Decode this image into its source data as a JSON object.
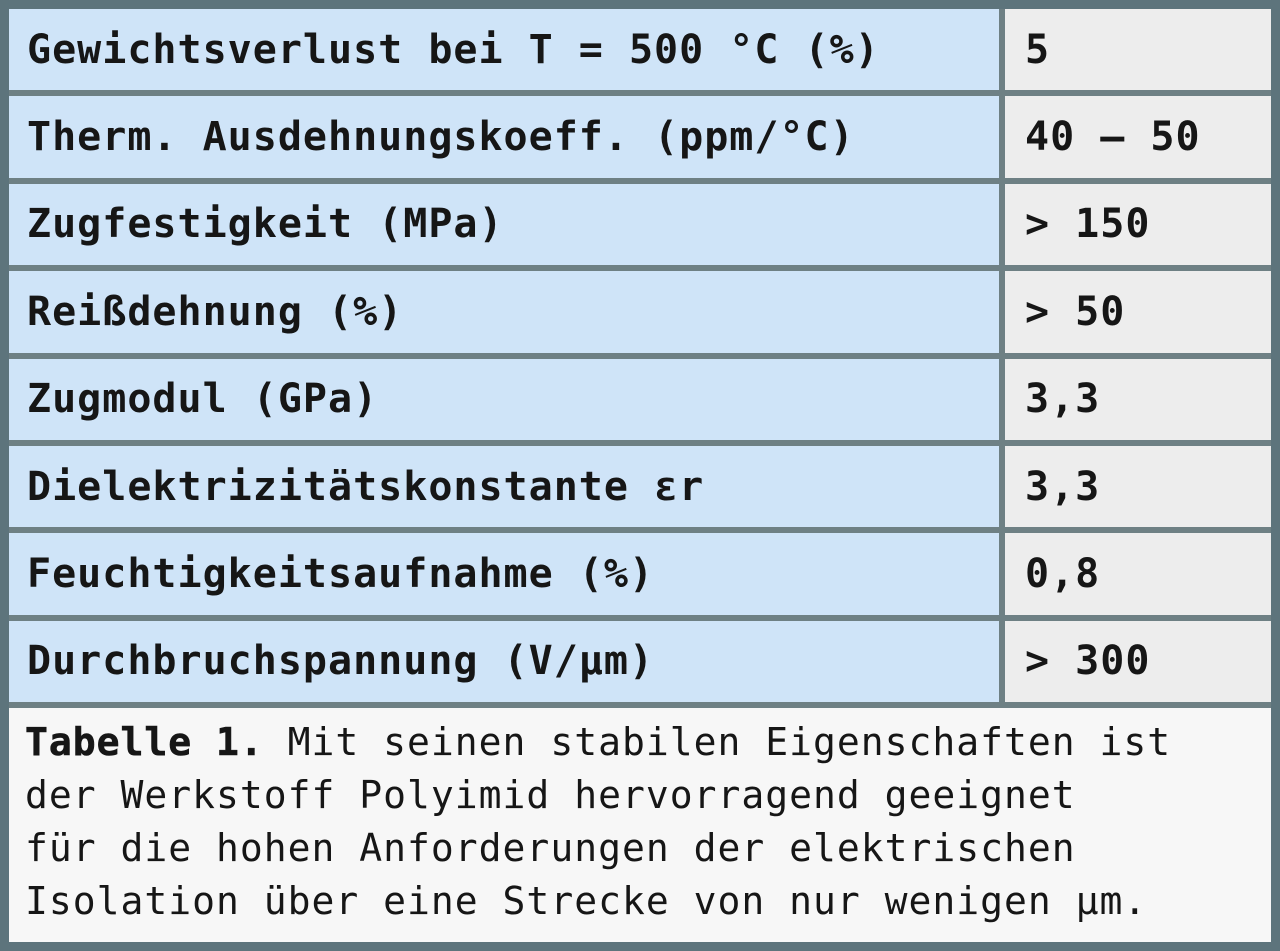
{
  "colors": {
    "property_cell_bg": "#cfe4f8",
    "value_cell_bg": "#ededed",
    "caption_bg": "#f7f7f7",
    "border": "#6e8084",
    "outer_border": "#5d747c",
    "text": "#161616"
  },
  "table": {
    "rows": [
      {
        "property": "Gewichtsverlust bei T = 500 °C (%)",
        "value": "5"
      },
      {
        "property": "Therm. Ausdehnungskoeff. (ppm/°C)",
        "value": "40 – 50"
      },
      {
        "property": "Zugfestigkeit (MPa)",
        "value": "> 150"
      },
      {
        "property": "Reißdehnung (%)",
        "value": "> 50"
      },
      {
        "property": "Zugmodul (GPa)",
        "value": "3,3"
      },
      {
        "property": "Dielektrizitätskonstante εr",
        "value": "3,3"
      },
      {
        "property": "Feuchtigkeitsaufnahme (%)",
        "value": "0,8"
      },
      {
        "property": "Durchbruchspannung (V/µm)",
        "value": "> 300"
      }
    ]
  },
  "caption": {
    "label": "Tabelle 1.",
    "lines": [
      " Mit seinen stabilen Eigenschaften ist",
      "der Werkstoff Polyimid hervorragend geeignet",
      "für die hohen Anforderungen der elektrischen",
      "Isolation über eine Strecke von nur wenigen µm."
    ]
  }
}
